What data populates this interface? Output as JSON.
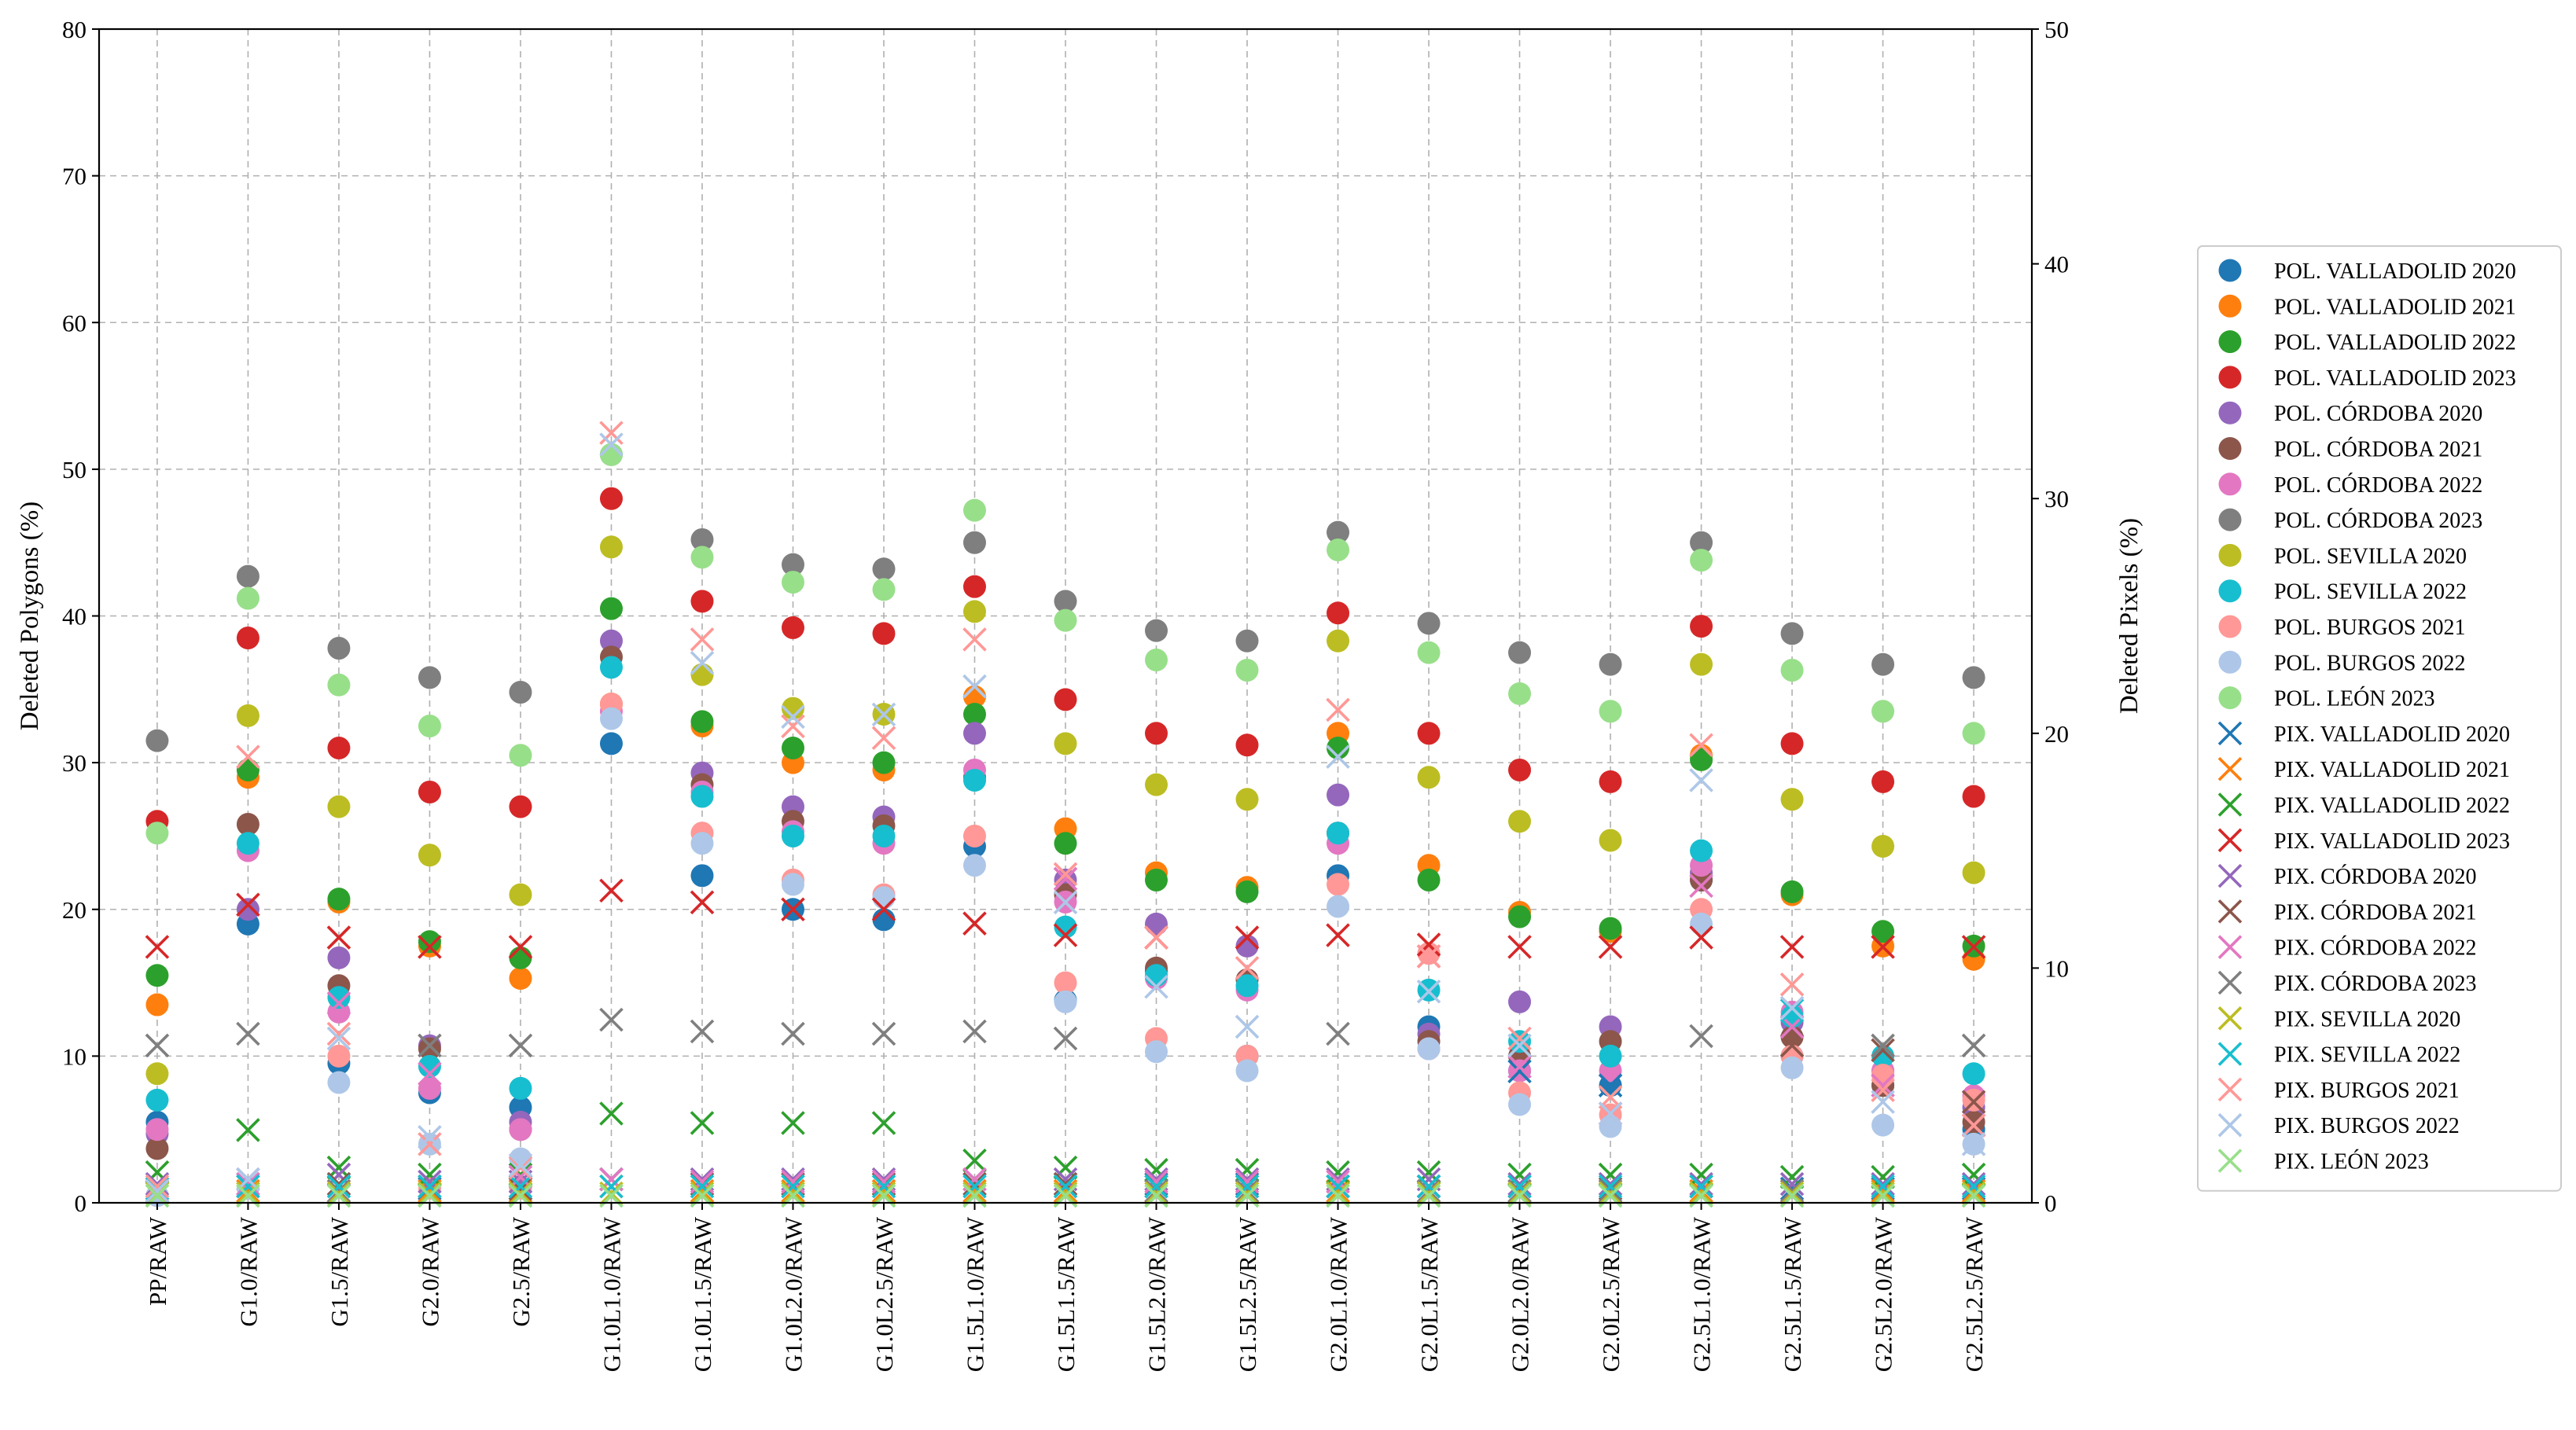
{
  "chart_data": {
    "type": "scatter",
    "categories": [
      "PP/RAW",
      "G1.0/RAW",
      "G1.5/RAW",
      "G2.0/RAW",
      "G2.5/RAW",
      "G1.0L1.0/RAW",
      "G1.0L1.5/RAW",
      "G1.0L2.0/RAW",
      "G1.0L2.5/RAW",
      "G1.5L1.0/RAW",
      "G1.5L1.5/RAW",
      "G1.5L2.0/RAW",
      "G1.5L2.5/RAW",
      "G2.0L1.0/RAW",
      "G2.0L1.5/RAW",
      "G2.0L2.0/RAW",
      "G2.0L2.5/RAW",
      "G2.5L1.0/RAW",
      "G2.5L1.5/RAW",
      "G2.5L2.0/RAW",
      "G2.5L2.5/RAW"
    ],
    "ylabel_left": "Deleted Polygons (%)",
    "ylabel_right": "Deleted Pixels (%)",
    "ylim_left": [
      0,
      80
    ],
    "ylim_right": [
      0,
      50
    ],
    "yticks_left": [
      "0",
      "10",
      "20",
      "30",
      "40",
      "50",
      "60",
      "70",
      "80"
    ],
    "yticks_right": [
      "0",
      "10",
      "20",
      "30",
      "40",
      "50"
    ],
    "grid": true,
    "legend_position": "right",
    "series": [
      {
        "name": "POL. VALLADOLID 2020",
        "axis": "left",
        "marker": "circle",
        "color": "#1f77b4",
        "values": [
          5.5,
          19,
          9.5,
          7.5,
          6.5,
          31.3,
          22.3,
          20,
          19.3,
          24.3,
          13.8,
          15.8,
          10,
          22.3,
          12,
          9,
          8,
          22,
          10,
          8,
          5
        ]
      },
      {
        "name": "POL. VALLADOLID 2021",
        "axis": "left",
        "marker": "circle",
        "color": "#ff7f0e",
        "values": [
          13.5,
          29,
          20.5,
          17.5,
          15.3,
          34,
          32.5,
          30,
          29.5,
          34.5,
          25.5,
          22.5,
          21.5,
          32,
          23,
          19.8,
          18.5,
          30.5,
          21,
          17.5,
          16.6
        ]
      },
      {
        "name": "POL. VALLADOLID 2022",
        "axis": "left",
        "marker": "circle",
        "color": "#2ca02c",
        "values": [
          15.5,
          29.5,
          20.7,
          17.8,
          16.7,
          40.5,
          32.8,
          31,
          30,
          33.3,
          24.5,
          22,
          21.2,
          31,
          22,
          19.5,
          18.7,
          30.2,
          21.2,
          18.5,
          17.5
        ]
      },
      {
        "name": "POL. VALLADOLID 2023",
        "axis": "left",
        "marker": "circle",
        "color": "#d62728",
        "values": [
          26,
          38.5,
          31,
          28,
          27,
          48,
          41,
          39.2,
          38.8,
          42,
          34.3,
          32,
          31.2,
          40.2,
          32,
          29.5,
          28.7,
          39.3,
          31.3,
          28.7,
          27.7
        ]
      },
      {
        "name": "POL. CÓRDOBA 2020",
        "axis": "left",
        "marker": "circle",
        "color": "#9467bd",
        "values": [
          4.7,
          20,
          16.7,
          10.7,
          5.5,
          38.3,
          29.3,
          27,
          26.3,
          32,
          22,
          19,
          17.5,
          27.8,
          11.5,
          13.7,
          12,
          22.5,
          12.3,
          9,
          6.5
        ]
      },
      {
        "name": "POL. CÓRDOBA 2021",
        "axis": "left",
        "marker": "circle",
        "color": "#8c564b",
        "values": [
          3.7,
          25.8,
          14.8,
          10.5,
          5,
          37.2,
          28.5,
          26,
          25.7,
          29,
          21,
          16,
          15.2,
          25.2,
          11,
          10,
          11,
          22,
          11.3,
          8,
          5.5
        ]
      },
      {
        "name": "POL. CÓRDOBA 2022",
        "axis": "left",
        "marker": "circle",
        "color": "#e377c2",
        "values": [
          5,
          24,
          13,
          7.8,
          5,
          33.5,
          28,
          25.3,
          24.5,
          29.5,
          20.5,
          15.3,
          14.5,
          24.5,
          10.5,
          9,
          9,
          23,
          13,
          9,
          7.3
        ]
      },
      {
        "name": "POL. CÓRDOBA 2023",
        "axis": "left",
        "marker": "circle",
        "color": "#7f7f7f",
        "values": [
          31.5,
          42.7,
          37.8,
          35.8,
          34.8,
          51,
          45.2,
          43.5,
          43.2,
          45,
          41,
          39,
          38.3,
          45.7,
          39.5,
          37.5,
          36.7,
          45,
          38.8,
          36.7,
          35.8
        ]
      },
      {
        "name": "POL. SEVILLA 2020",
        "axis": "left",
        "marker": "circle",
        "color": "#bcbd22",
        "values": [
          8.8,
          33.2,
          27,
          23.7,
          21,
          44.7,
          36,
          33.7,
          33.3,
          40.3,
          31.3,
          28.5,
          27.5,
          38.3,
          29,
          26,
          24.7,
          36.7,
          27.5,
          24.3,
          22.5
        ]
      },
      {
        "name": "POL. SEVILLA 2022",
        "axis": "left",
        "marker": "circle",
        "color": "#17becf",
        "values": [
          7,
          24.5,
          14,
          9.3,
          7.8,
          36.5,
          27.7,
          25,
          25,
          28.8,
          18.8,
          15.5,
          14.8,
          25.2,
          14.5,
          11,
          10,
          24,
          12.7,
          10,
          8.8
        ]
      },
      {
        "name": "POL. BURGOS 2021",
        "axis": "left",
        "marker": "circle",
        "color": "#ff9896",
        "values": [
          0.5,
          1,
          10,
          1,
          1,
          34,
          25.2,
          22,
          21,
          25,
          15,
          11.2,
          10,
          21.7,
          17,
          7.5,
          6,
          20,
          10,
          8.7,
          7
        ]
      },
      {
        "name": "POL. BURGOS 2022",
        "axis": "left",
        "marker": "circle",
        "color": "#aec7e8",
        "values": [
          0.5,
          1,
          8.2,
          4,
          3,
          33,
          24.5,
          21.7,
          20.8,
          23,
          13.7,
          10.3,
          9,
          20.2,
          10.5,
          6.7,
          5.2,
          19,
          9.2,
          5.3,
          4
        ]
      },
      {
        "name": "POL. LEÓN 2023",
        "axis": "left",
        "marker": "circle",
        "color": "#98df8a",
        "values": [
          25.2,
          41.2,
          35.3,
          32.5,
          30.5,
          51,
          44,
          42.3,
          41.8,
          47.2,
          39.7,
          37,
          36.3,
          44.5,
          37.5,
          34.7,
          33.5,
          43.8,
          36.3,
          33.5,
          32
        ]
      },
      {
        "name": "PIX. VALLADOLID 2020",
        "axis": "right",
        "marker": "x",
        "color": "#1f77b4",
        "values": [
          0.5,
          0.8,
          0.8,
          0.6,
          0.6,
          1,
          0.8,
          0.8,
          0.8,
          0.8,
          0.8,
          0.8,
          0.8,
          0.7,
          0.7,
          5.6,
          5,
          0.7,
          0.6,
          0.6,
          0.6
        ]
      },
      {
        "name": "PIX. VALLADOLID 2021",
        "axis": "right",
        "marker": "x",
        "color": "#ff7f0e",
        "values": [
          0.5,
          0.5,
          0.5,
          0.5,
          0.5,
          0.7,
          0.5,
          0.5,
          0.5,
          0.5,
          0.5,
          0.5,
          0.5,
          0.5,
          0.5,
          0.5,
          0.5,
          0.5,
          0.5,
          0.5,
          0.5
        ]
      },
      {
        "name": "PIX. VALLADOLID 2022",
        "axis": "right",
        "marker": "x",
        "color": "#2ca02c",
        "values": [
          1.3,
          3.1,
          1.5,
          1.2,
          1.2,
          3.8,
          3.4,
          3.4,
          3.4,
          1.8,
          1.5,
          1.4,
          1.4,
          1.3,
          1.3,
          1.2,
          1.2,
          1.2,
          1.1,
          1.1,
          1.2
        ]
      },
      {
        "name": "PIX. VALLADOLID 2023",
        "axis": "right",
        "marker": "x",
        "color": "#d62728",
        "values": [
          10.9,
          12.7,
          11.3,
          10.9,
          10.9,
          13.3,
          12.8,
          12.5,
          12.5,
          11.9,
          11.4,
          11.3,
          11.3,
          11.4,
          11,
          10.9,
          10.9,
          11.3,
          10.9,
          10.9,
          10.9
        ]
      },
      {
        "name": "PIX. CÓRDOBA 2020",
        "axis": "right",
        "marker": "x",
        "color": "#9467bd",
        "values": [
          0.8,
          1,
          1.2,
          0.9,
          0.9,
          1,
          1,
          1,
          1,
          1,
          1,
          1,
          1,
          1,
          1,
          0.8,
          0.8,
          0.8,
          0.8,
          0.8,
          0.8
        ]
      },
      {
        "name": "PIX. CÓRDOBA 2021",
        "axis": "right",
        "marker": "x",
        "color": "#8c564b",
        "values": [
          0.5,
          0.7,
          0.8,
          0.7,
          0.6,
          1,
          0.8,
          0.8,
          0.8,
          0.8,
          0.8,
          0.7,
          0.7,
          0.7,
          0.7,
          0.7,
          0.6,
          0.7,
          6.7,
          6.5,
          4.3
        ]
      },
      {
        "name": "PIX. CÓRDOBA 2022",
        "axis": "right",
        "marker": "x",
        "color": "#e377c2",
        "values": [
          0.6,
          0.8,
          8.5,
          5.5,
          1.1,
          1,
          0.9,
          0.9,
          0.9,
          1,
          13.8,
          0.9,
          0.9,
          0.9,
          10.5,
          5.8,
          3.8,
          13.5,
          7.5,
          5,
          3.3
        ]
      },
      {
        "name": "PIX. CÓRDOBA 2023",
        "axis": "right",
        "marker": "x",
        "color": "#7f7f7f",
        "values": [
          6.7,
          7.2,
          0.5,
          6.7,
          6.7,
          7.8,
          7.3,
          7.2,
          7.2,
          7.3,
          7,
          0.5,
          0.5,
          7.2,
          0.5,
          0.5,
          0.5,
          7.1,
          0.5,
          6.7,
          6.7
        ]
      },
      {
        "name": "PIX. SEVILLA 2020",
        "axis": "right",
        "marker": "x",
        "color": "#bcbd22",
        "values": [
          0.4,
          0.4,
          0.4,
          0.4,
          0.4,
          0.4,
          0.4,
          0.4,
          0.4,
          0.4,
          0.4,
          0.4,
          0.4,
          0.4,
          0.4,
          0.4,
          0.4,
          0.4,
          0.4,
          0.4,
          0.4
        ]
      },
      {
        "name": "PIX. SEVILLA 2022",
        "axis": "right",
        "marker": "x",
        "color": "#17becf",
        "values": [
          0.6,
          0.7,
          0.7,
          0.7,
          0.7,
          0.7,
          0.7,
          0.7,
          0.7,
          0.7,
          0.7,
          0.7,
          0.7,
          0.7,
          0.7,
          0.7,
          0.7,
          0.7,
          8.2,
          0.7,
          0.7
        ]
      },
      {
        "name": "PIX. BURGOS 2021",
        "axis": "right",
        "marker": "x",
        "color": "#ff9896",
        "values": [
          0.7,
          19,
          7.2,
          2.5,
          1.5,
          32.8,
          24,
          20.3,
          19.8,
          24,
          14,
          11.3,
          10,
          21,
          10.5,
          7,
          4.5,
          19.5,
          9.3,
          4.8,
          3.3
        ]
      },
      {
        "name": "PIX. BURGOS 2022",
        "axis": "right",
        "marker": "x",
        "color": "#aec7e8",
        "values": [
          0.5,
          1,
          7,
          2.8,
          1.6,
          32.3,
          23,
          20.7,
          20.8,
          22,
          12.8,
          9.2,
          7.5,
          19,
          9,
          6.7,
          3.8,
          18,
          8.3,
          4.3,
          2.5
        ]
      },
      {
        "name": "PIX. LEÓN 2023",
        "axis": "right",
        "marker": "x",
        "color": "#98df8a",
        "values": [
          0.3,
          0.3,
          0.3,
          0.3,
          0.3,
          0.3,
          0.3,
          0.3,
          0.3,
          0.3,
          0.3,
          0.3,
          0.3,
          0.3,
          0.3,
          0.3,
          0.3,
          0.3,
          0.3,
          0.3,
          0.3
        ]
      }
    ]
  }
}
